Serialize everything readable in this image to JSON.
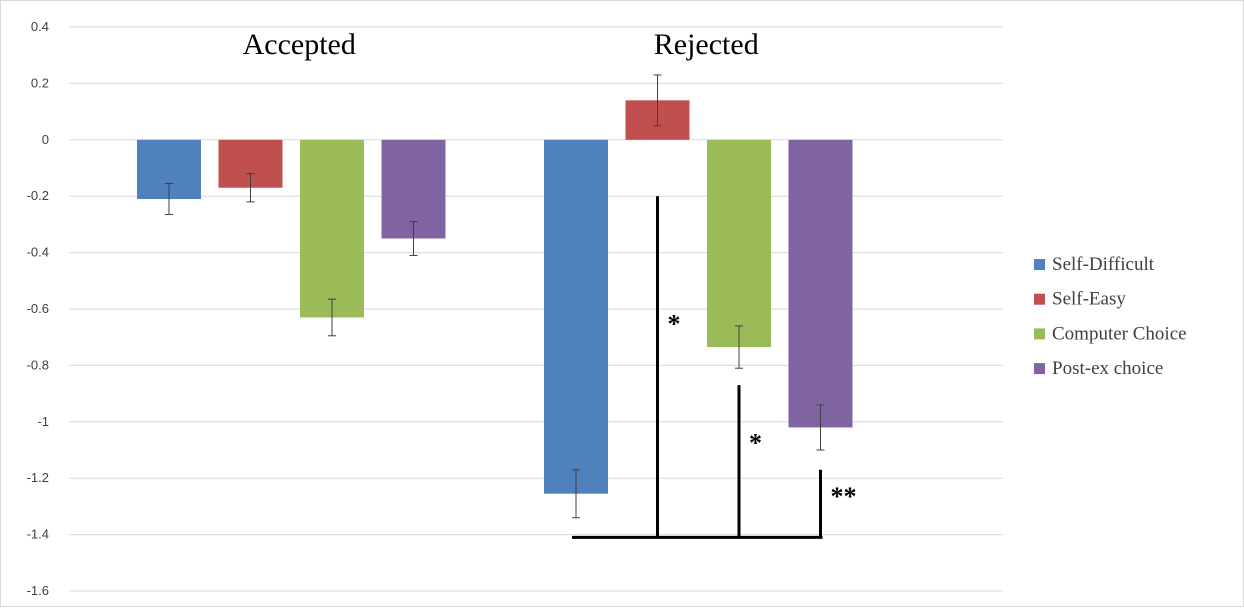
{
  "chart_data": {
    "type": "bar",
    "groups": [
      "Accepted",
      "Rejected"
    ],
    "series": [
      {
        "name": "Self-Difficult",
        "color": "#4f81bd",
        "values": [
          -0.21,
          -1.255
        ],
        "error": [
          0.055,
          0.085
        ]
      },
      {
        "name": "Self-Easy",
        "color": "#c0504d",
        "values": [
          -0.17,
          0.14
        ],
        "error": [
          0.05,
          0.09
        ]
      },
      {
        "name": "Computer Choice",
        "color": "#9bbb59",
        "values": [
          -0.63,
          -0.735
        ],
        "error": [
          0.065,
          0.075
        ]
      },
      {
        "name": "Post-ex choice",
        "color": "#8064a2",
        "values": [
          -0.35,
          -1.02
        ],
        "error": [
          0.06,
          0.08
        ]
      }
    ],
    "ylim": [
      -1.6,
      0.4
    ],
    "yticks": [
      "0.4",
      "0.2",
      "0",
      "-0.2",
      "-0.4",
      "-0.6",
      "-0.8",
      "-1",
      "-1.2",
      "-1.4",
      "-1.6"
    ],
    "yticks_values": [
      0.4,
      0.2,
      0,
      -0.2,
      -0.4,
      -0.6,
      -0.8,
      -1,
      -1.2,
      -1.4,
      -1.6
    ],
    "grid": true,
    "legend": "right",
    "significance": {
      "group": "Rejected",
      "base_value": -1.41,
      "base_from": "Self-Difficult",
      "base_to": "Post-ex choice",
      "markers": [
        {
          "at_series": "Self-Easy",
          "top_value": -0.2,
          "label": "*"
        },
        {
          "at_series": "Computer Choice",
          "top_value": -0.87,
          "label": "*"
        },
        {
          "at_series": "Post-ex choice",
          "top_value": -1.17,
          "label": "**"
        }
      ]
    }
  }
}
